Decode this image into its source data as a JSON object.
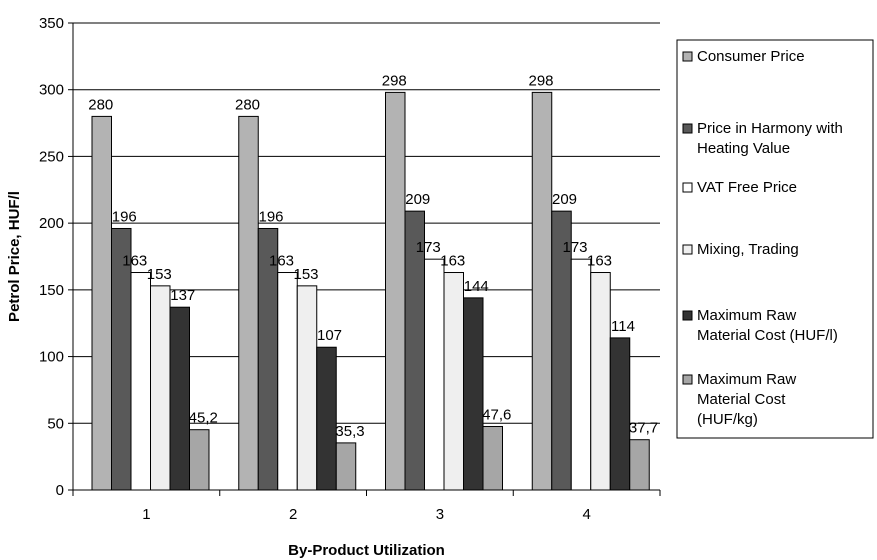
{
  "chart_data": {
    "type": "bar",
    "xlabel": "By-Product Utilization",
    "ylabel": "Petrol Price, HUF/l",
    "ylim": [
      0,
      350
    ],
    "yticks": [
      "0",
      "50",
      "100",
      "150",
      "200",
      "250",
      "300",
      "350"
    ],
    "categories": [
      "1",
      "2",
      "3",
      "4"
    ],
    "grid": "horizontal",
    "legend_position": "right",
    "series": [
      {
        "name": "Consumer Price",
        "color": "#b3b3b3",
        "values": [
          280,
          280,
          298,
          298
        ],
        "labels": [
          "280",
          "280",
          "298",
          "298"
        ]
      },
      {
        "name": "Price in Harmony with Heating Value",
        "color": "#595959",
        "legend_lines": [
          "Price in Harmony with",
          "Heating Value"
        ],
        "values": [
          196,
          196,
          209,
          209
        ],
        "labels": [
          "196",
          "196",
          "209",
          "209"
        ]
      },
      {
        "name": "VAT Free Price",
        "color": "#ffffff",
        "values": [
          163,
          163,
          173,
          173
        ],
        "labels": [
          "163",
          "163",
          "173",
          "173"
        ]
      },
      {
        "name": "Mixing, Trading",
        "color": "#efefef",
        "values": [
          153,
          153,
          163,
          163
        ],
        "labels": [
          "153",
          "153",
          "163",
          "163"
        ]
      },
      {
        "name": "Maximum Raw Material Cost (HUF/l)",
        "color": "#333333",
        "legend_lines": [
          "Maximum Raw",
          "Material Cost (HUF/l)"
        ],
        "values": [
          137,
          107,
          144,
          114
        ],
        "labels": [
          "137",
          "107",
          "144",
          "114"
        ]
      },
      {
        "name": "Maximum Raw Material Cost (HUF/kg)",
        "color": "#a6a6a6",
        "legend_lines": [
          "Maximum Raw",
          "Material Cost",
          "(HUF/kg)"
        ],
        "values": [
          45.2,
          35.3,
          47.6,
          37.7
        ],
        "labels": [
          "45,2",
          "35,3",
          "47,6",
          "37,7"
        ]
      }
    ]
  }
}
